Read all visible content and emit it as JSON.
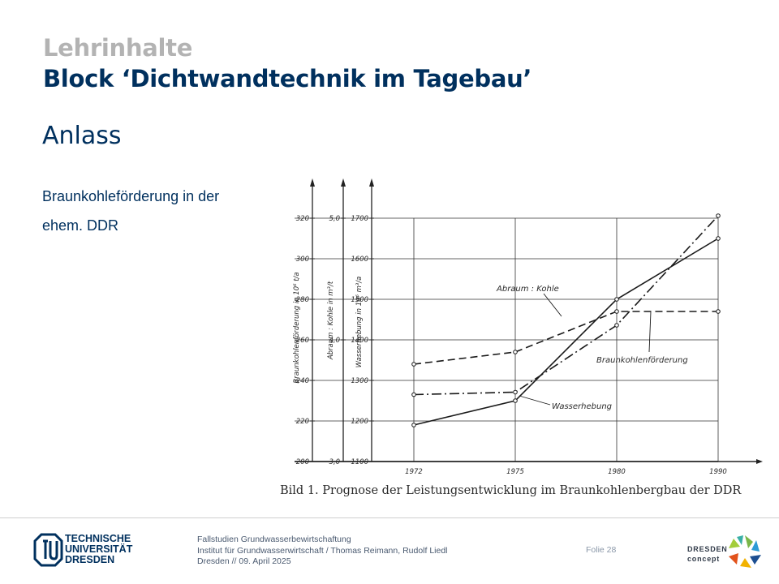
{
  "header": {
    "kicker": "Lehrinhalte",
    "title": "Block ‘Dichtwandtechnik im Tagebau’",
    "section": "Anlass"
  },
  "content": {
    "lines": [
      "Braunkohleförderung  in der",
      "ehem. DDR"
    ]
  },
  "chart_data": {
    "type": "line",
    "x": [
      1972,
      1975,
      1980,
      1990
    ],
    "x_tick_labels": [
      "1972",
      "1975",
      "1980",
      "1990"
    ],
    "axes": [
      {
        "label": "Braunkohlenförderung in 10⁶ t/a",
        "ticks": [
          200,
          220,
          240,
          260,
          280,
          300,
          320
        ],
        "range": [
          200,
          320
        ]
      },
      {
        "label": "Abraum : Kohle in m³/t",
        "ticks": [
          3.0,
          4.0,
          5.0
        ],
        "tick_labels": [
          "3,0",
          "4,0",
          "5,0"
        ],
        "range": [
          3.0,
          5.0
        ]
      },
      {
        "label": "Wasserhebung in 10⁶ m³/a",
        "ticks": [
          1100,
          1200,
          1300,
          1400,
          1500,
          1600,
          1700
        ],
        "range": [
          1100,
          1700
        ]
      }
    ],
    "series": [
      {
        "name": "Abraum : Kohle",
        "axis": 1,
        "style": "dash-dot",
        "x": [
          1972,
          1975,
          1980,
          1990
        ],
        "values": [
          3.55,
          3.57,
          4.12,
          5.02
        ]
      },
      {
        "name": "Braunkohlenförderung",
        "axis": 0,
        "style": "dashed",
        "x": [
          1972,
          1975,
          1980,
          1990
        ],
        "values": [
          248,
          254,
          274,
          274
        ]
      },
      {
        "name": "Wasserhebung",
        "axis": 2,
        "style": "solid",
        "x": [
          1972,
          1975,
          1980,
          1990
        ],
        "values": [
          1190,
          1250,
          1500,
          1650
        ]
      }
    ],
    "caption": "Bild 1. Prognose der Leistungsentwicklung im Braunkohlenbergbau der DDR",
    "grid": true
  },
  "footer": {
    "logo_lines": [
      "TECHNISCHE",
      "UNIVERSITÄT",
      "DRESDEN"
    ],
    "info_lines": [
      "Fallstudien Grundwasserbewirtschaftung",
      "Institut für Grundwasserwirtschaft / Thomas Reimann, Rudolf Liedl",
      "Dresden // 09. April 2025"
    ],
    "folio": "Folie 28",
    "partner_lines": [
      "DRESDEN",
      "concept"
    ]
  }
}
